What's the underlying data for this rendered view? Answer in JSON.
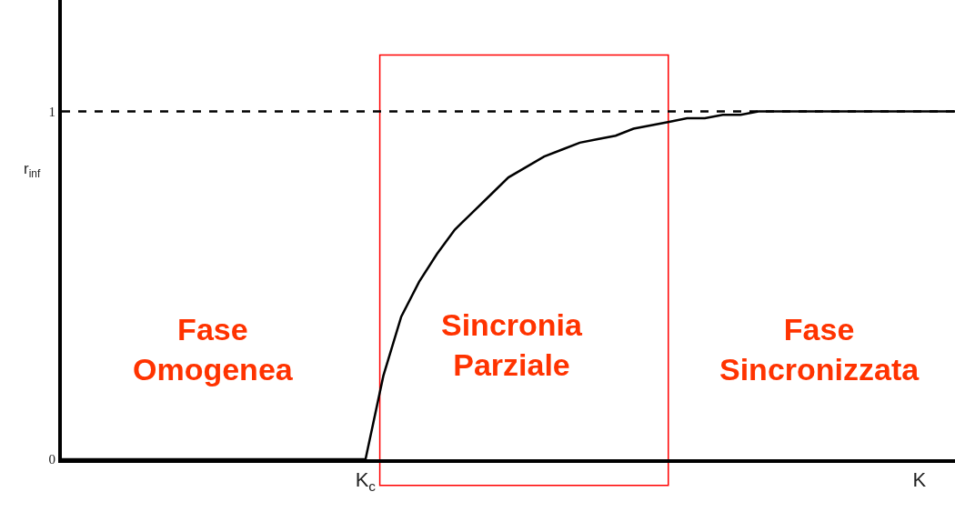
{
  "chart_data": {
    "type": "line",
    "ylabel": "r$_{inf}$",
    "categories": [
      null,
      null,
      null,
      null,
      null,
      null,
      null,
      null,
      null,
      null,
      null,
      null,
      null,
      null,
      null,
      null,
      null,
      "K$_{c}$",
      null,
      null,
      null,
      null,
      null,
      null,
      null,
      null,
      null,
      null,
      null,
      null,
      null,
      null,
      null,
      null,
      null,
      null,
      null,
      null,
      null,
      null,
      null,
      null,
      null,
      null,
      null,
      null,
      null,
      null,
      "K",
      null,
      null
    ],
    "series": [
      {
        "color": "#000000",
        "values": [
          0,
          0,
          0,
          0,
          0,
          0,
          0,
          0,
          0,
          0,
          0,
          0,
          0,
          0,
          0,
          0,
          0,
          0,
          0.24,
          0.41,
          0.51,
          0.59,
          0.66,
          0.71,
          0.76,
          0.81,
          0.84,
          0.87,
          0.89,
          0.91,
          0.92,
          0.93,
          0.95,
          0.96,
          0.97,
          0.98,
          0.98,
          0.99,
          0.99,
          1,
          1,
          1,
          1,
          1,
          1,
          1,
          1,
          1,
          1,
          1,
          1
        ]
      }
    ],
    "ylim": [
      0,
      1.32
    ],
    "yticks": [
      0,
      1
    ],
    "ref_lines": [
      {
        "axis": "y",
        "value": 1,
        "color": "#000000",
        "line_style": "dashed"
      }
    ],
    "annotations": [
      "Fase\nOmogenea",
      "Sincronia\nParziale",
      "Fase\nSincronizzata"
    ],
    "marker": "none",
    "line_style": "solid"
  }
}
